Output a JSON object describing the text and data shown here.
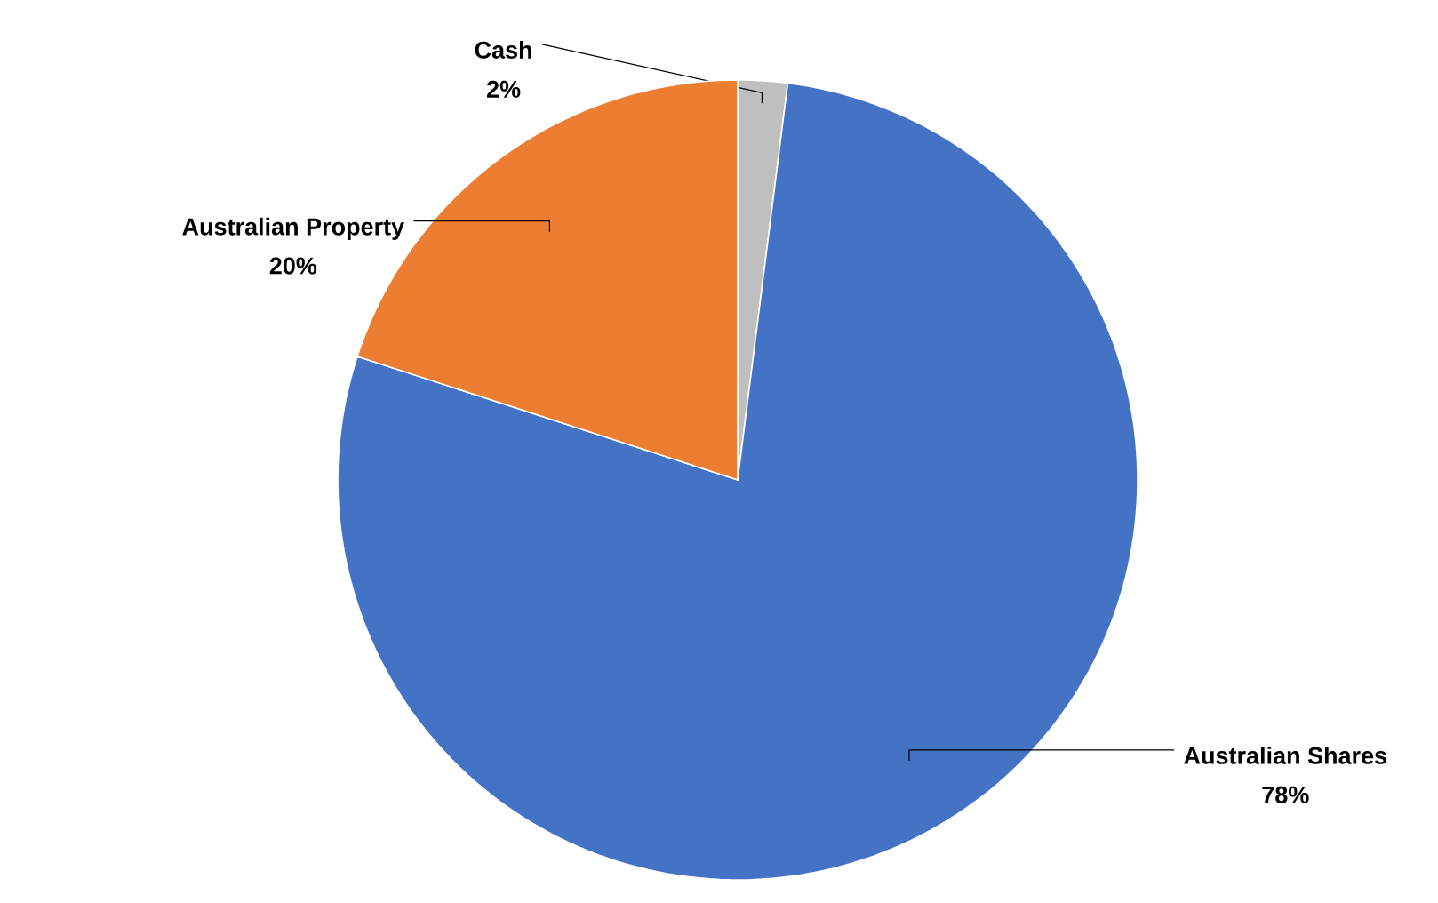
{
  "chart_data": {
    "type": "pie",
    "categories": [
      "Cash",
      "Australian Shares",
      "Australian Property"
    ],
    "values": [
      2,
      78,
      20
    ],
    "colors": [
      "#bfbfbf",
      "#4472c4",
      "#ed7d31"
    ],
    "value_labels": [
      "2%",
      "78%",
      "20%"
    ]
  }
}
